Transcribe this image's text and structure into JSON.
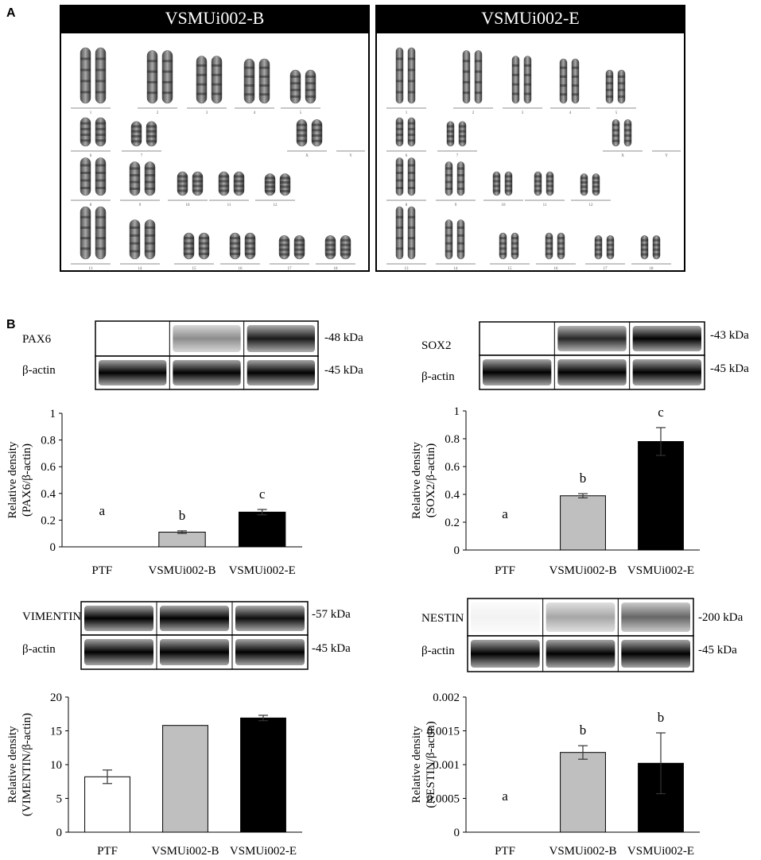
{
  "panel_a": {
    "letter": "A",
    "karyotypes": [
      {
        "title": "VSMUi002-B",
        "rows": [
          [
            "1",
            "2",
            "3",
            "4",
            "5"
          ],
          [
            "6",
            "7",
            "X",
            "Y"
          ],
          [
            "8",
            "9",
            "10",
            "11",
            "12"
          ],
          [
            "13",
            "14",
            "15",
            "16",
            "17",
            "18"
          ]
        ]
      },
      {
        "title": "VSMUi002-E",
        "rows": [
          [
            "1",
            "2",
            "3",
            "4",
            "5"
          ],
          [
            "6",
            "7",
            "X",
            "Y"
          ],
          [
            "8",
            "9",
            "10",
            "11",
            "12"
          ],
          [
            "13",
            "14",
            "15",
            "16",
            "17",
            "18"
          ]
        ]
      }
    ]
  },
  "panel_b": {
    "letter": "B",
    "blots": [
      {
        "target_label": "PAX6",
        "target_kda": "-48 kDa",
        "actin_label": "β-actin",
        "actin_kda": "-45 kDa",
        "target_intensity": [
          0,
          0.45,
          0.9
        ],
        "actin_intensity": [
          1,
          1,
          1
        ]
      },
      {
        "target_label": "SOX2",
        "target_kda": "-43 kDa",
        "actin_label": "β-actin",
        "actin_kda": "-45 kDa",
        "target_intensity": [
          0,
          0.85,
          1
        ],
        "actin_intensity": [
          1,
          1,
          1
        ]
      },
      {
        "target_label": "VIMENTIN",
        "target_kda": "-57 kDa",
        "actin_label": "β-actin",
        "actin_kda": "-45 kDa",
        "target_intensity": [
          1,
          1,
          0.95
        ],
        "actin_intensity": [
          1,
          1,
          1
        ]
      },
      {
        "target_label": "NESTIN",
        "target_kda": "-200 kDa",
        "actin_label": "β-actin",
        "actin_kda": "-45 kDa",
        "target_intensity": [
          0.05,
          0.35,
          0.6
        ],
        "actin_intensity": [
          1,
          1,
          1
        ]
      }
    ]
  },
  "chart_data": [
    {
      "type": "bar",
      "categories": [
        "PTF",
        "VSMUi002-B",
        "VSMUi002-E"
      ],
      "values": [
        0,
        0.11,
        0.26
      ],
      "errors": [
        0,
        0.01,
        0.02
      ],
      "letters": [
        "a",
        "b",
        "c"
      ],
      "ylabel_line1": "Relative density",
      "ylabel_line2": "(PAX6/β-actin)",
      "ylim": [
        0,
        1
      ],
      "yticks": [
        "0",
        "0.2",
        "0.4",
        "0.6",
        "0.8",
        "1"
      ],
      "colors": [
        "#ffffff",
        "#bfbfbf",
        "#000000"
      ]
    },
    {
      "type": "bar",
      "categories": [
        "PTF",
        "VSMUi002-B",
        "VSMUi002-E"
      ],
      "values": [
        0,
        0.39,
        0.78
      ],
      "errors": [
        0,
        0.015,
        0.1
      ],
      "letters": [
        "a",
        "b",
        "c"
      ],
      "ylabel_line1": "Relative density",
      "ylabel_line2": "(SOX2/β-actin)",
      "ylim": [
        0,
        1
      ],
      "yticks": [
        "0",
        "0.2",
        "0.4",
        "0.6",
        "0.8",
        "1"
      ],
      "colors": [
        "#ffffff",
        "#bfbfbf",
        "#000000"
      ]
    },
    {
      "type": "bar",
      "categories": [
        "PTF",
        "VSMUi002-B",
        "VSMUi002-E"
      ],
      "values": [
        8.2,
        15.8,
        16.9
      ],
      "errors": [
        1.0,
        0,
        0.4
      ],
      "letters": [
        "",
        "",
        ""
      ],
      "ylabel_line1": "Relative density",
      "ylabel_line2": "(VIMENTIN/β-actin)",
      "ylim": [
        0,
        20
      ],
      "yticks": [
        "0",
        "5",
        "10",
        "15",
        "20"
      ],
      "colors": [
        "#ffffff",
        "#bfbfbf",
        "#000000"
      ]
    },
    {
      "type": "bar",
      "categories": [
        "PTF",
        "VSMUi002-B",
        "VSMUi002-E"
      ],
      "values": [
        0,
        0.00118,
        0.00102
      ],
      "errors": [
        0,
        0.0001,
        0.00045
      ],
      "letters": [
        "a",
        "b",
        "b"
      ],
      "ylabel_line1": "Relative density",
      "ylabel_line2": "(NESTIN/β-actin)",
      "ylim": [
        0,
        0.002
      ],
      "yticks": [
        "0",
        "0.0005",
        "0.001",
        "0.0015",
        "0.002"
      ],
      "colors": [
        "#ffffff",
        "#bfbfbf",
        "#000000"
      ]
    }
  ]
}
